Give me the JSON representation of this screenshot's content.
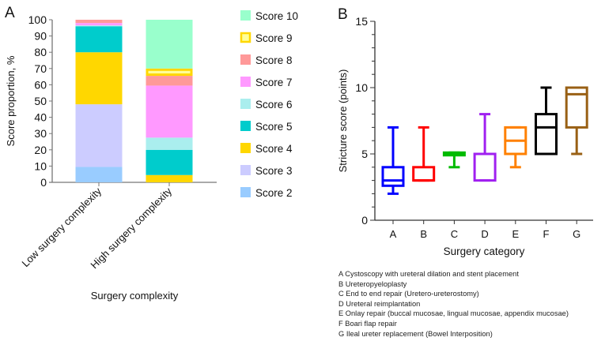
{
  "chart_data": [
    {
      "panel": "A",
      "type": "bar",
      "stacked": true,
      "title": "",
      "xlabel": "Surgery complexity",
      "ylabel": "Score proportion, %",
      "ylim": [
        0,
        100
      ],
      "yticks": [
        0,
        10,
        20,
        30,
        40,
        50,
        60,
        70,
        80,
        90,
        100
      ],
      "categories": [
        "Low surgery complexity",
        "High surgery complexity"
      ],
      "legend_position": "right",
      "series": [
        {
          "name": "Score 2",
          "color": "#99ccff",
          "values": [
            9.5,
            0
          ]
        },
        {
          "name": "Score 3",
          "color": "#ccccff",
          "values": [
            38.5,
            0
          ]
        },
        {
          "name": "Score 4",
          "color": "#ffd700",
          "values": [
            32,
            4.5
          ]
        },
        {
          "name": "Score 5",
          "color": "#00cccc",
          "values": [
            16,
            15.5
          ]
        },
        {
          "name": "Score 6",
          "color": "#aaeeee",
          "values": [
            0.5,
            7.5
          ]
        },
        {
          "name": "Score 7",
          "color": "#ff99ff",
          "values": [
            1.5,
            32
          ]
        },
        {
          "name": "Score 8",
          "color": "#ff9999",
          "values": [
            2,
            6
          ]
        },
        {
          "name": "Score 9",
          "color": "#ffff99",
          "border": "#ffd700",
          "values": [
            0,
            4.5
          ]
        },
        {
          "name": "Score 10",
          "color": "#99ffcc",
          "values": [
            0,
            30
          ]
        }
      ]
    },
    {
      "panel": "B",
      "type": "box",
      "title": "",
      "xlabel": "Surgery category",
      "ylabel": "Stricture score (points)",
      "ylim": [
        0,
        15
      ],
      "yticks": [
        0,
        5,
        10,
        15
      ],
      "categories": [
        "A",
        "B",
        "C",
        "D",
        "E",
        "F",
        "G"
      ],
      "boxes": [
        {
          "name": "A",
          "color": "#0000ff",
          "min": 2,
          "q1": 2.6,
          "median": 3,
          "q3": 4,
          "max": 7
        },
        {
          "name": "B",
          "color": "#ff0000",
          "min": 3,
          "q1": 3,
          "median": 3,
          "q3": 4,
          "max": 7
        },
        {
          "name": "C",
          "color": "#00bb00",
          "min": 4,
          "q1": 4.9,
          "median": 5,
          "q3": 5.1,
          "max": 5.1
        },
        {
          "name": "D",
          "color": "#a020f0",
          "min": 3,
          "q1": 3,
          "median": 5,
          "q3": 5,
          "max": 8
        },
        {
          "name": "E",
          "color": "#ff8000",
          "min": 4,
          "q1": 5,
          "median": 6,
          "q3": 7,
          "max": 7
        },
        {
          "name": "F",
          "color": "#000000",
          "min": 5,
          "q1": 5,
          "median": 7,
          "q3": 8,
          "max": 10
        },
        {
          "name": "G",
          "color": "#996015",
          "min": 5,
          "q1": 7,
          "median": 9.5,
          "q3": 10,
          "max": 10
        }
      ],
      "notes": [
        "A Cystoscopy with ureteral dilation and stent placement",
        "B Ureteropyeloplasty",
        "C End to end repair (Uretero-ureterostomy)",
        "D Ureteral reimplantation",
        "E Onlay repair (buccal mucosae, lingual mucosae, appendix mucosae)",
        "F Boari flap repair",
        "G Ileal ureter replacement (Bowel Interposition)"
      ]
    }
  ]
}
